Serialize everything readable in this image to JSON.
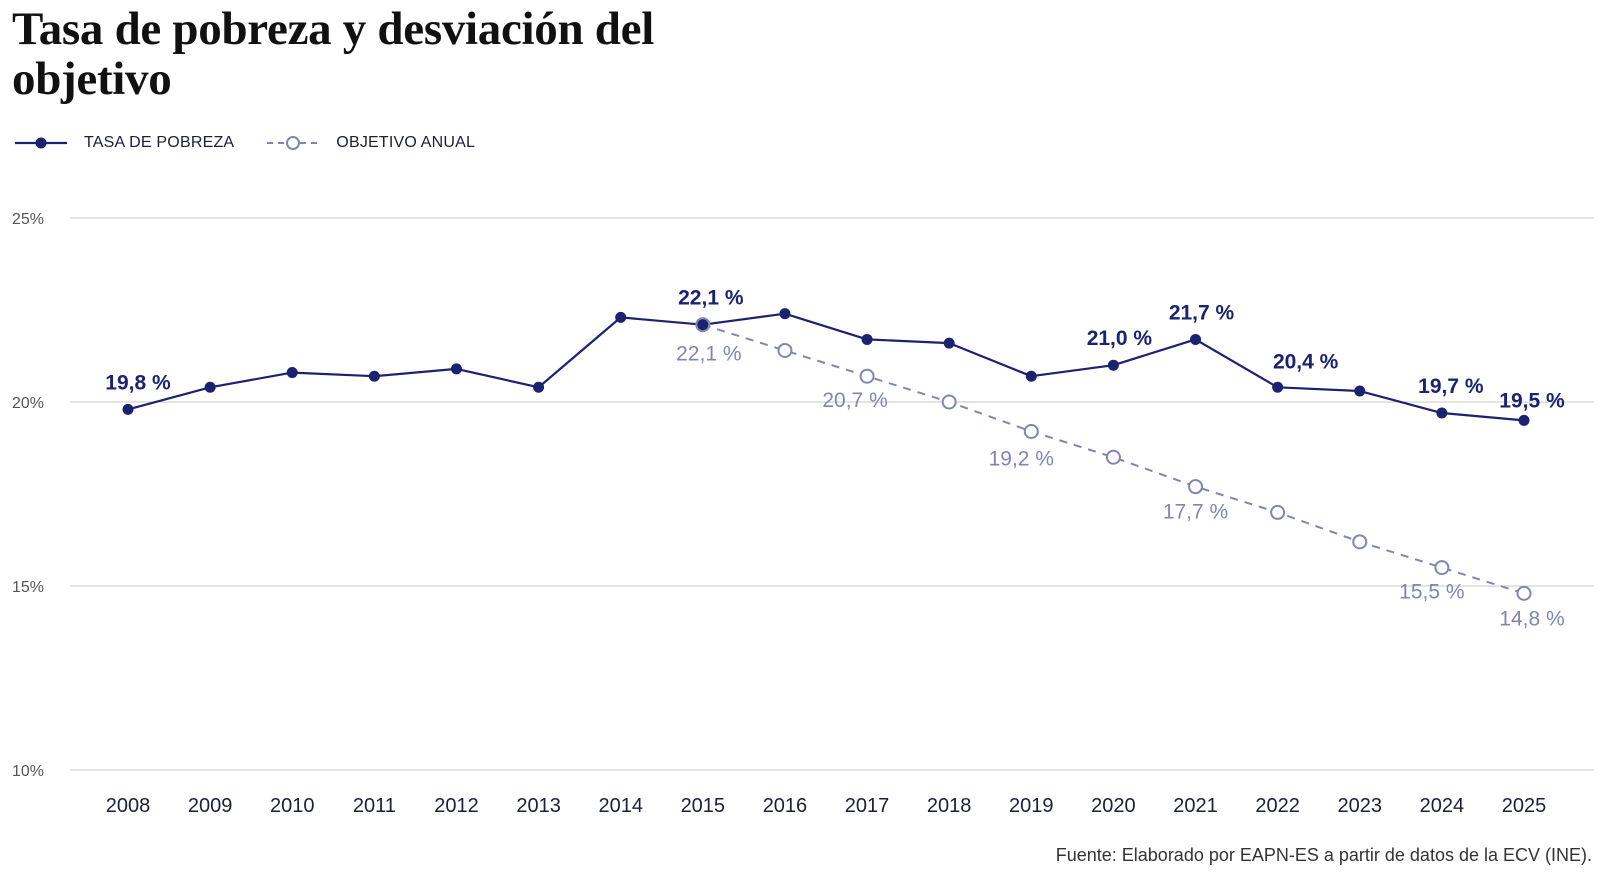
{
  "chart_data": {
    "type": "line",
    "title": "Tasa de pobreza y desviación del objetivo",
    "categories": [
      "2008",
      "2009",
      "2010",
      "2011",
      "2012",
      "2013",
      "2014",
      "2015",
      "2016",
      "2017",
      "2018",
      "2019",
      "2020",
      "2021",
      "2022",
      "2023",
      "2024",
      "2025"
    ],
    "ylim": [
      10,
      25
    ],
    "yticks": [
      {
        "value": 25,
        "label": "25%"
      },
      {
        "value": 20,
        "label": "20%"
      },
      {
        "value": 15,
        "label": "15%"
      },
      {
        "value": 10,
        "label": "10%"
      }
    ],
    "grid": true,
    "legend_position": "top-left",
    "series": [
      {
        "name": "TASA DE POBREZA",
        "style": "solid-filled-markers",
        "color": "#1b2270",
        "values": [
          19.8,
          20.4,
          20.8,
          20.7,
          20.9,
          20.4,
          22.3,
          22.1,
          22.4,
          21.7,
          21.6,
          20.7,
          21.0,
          21.7,
          20.4,
          20.3,
          19.7,
          19.5
        ],
        "data_labels": [
          {
            "index": 0,
            "text": "19,8 %"
          },
          {
            "index": 7,
            "text": "22,1 %"
          },
          {
            "index": 12,
            "text": "21,0 %"
          },
          {
            "index": 13,
            "text": "21,7 %"
          },
          {
            "index": 14,
            "text": "20,4 %"
          },
          {
            "index": 16,
            "text": "19,7 %"
          },
          {
            "index": 17,
            "text": "19,5 %"
          }
        ]
      },
      {
        "name": "OBJETIVO ANUAL",
        "style": "dashed-open-markers",
        "color": "#7f86b2",
        "values": [
          null,
          null,
          null,
          null,
          null,
          null,
          null,
          22.1,
          21.4,
          20.7,
          20.0,
          19.2,
          18.5,
          17.7,
          17.0,
          16.2,
          15.5,
          14.8
        ],
        "data_labels": [
          {
            "index": 7,
            "text": "22,1 %"
          },
          {
            "index": 9,
            "text": "20,7 %"
          },
          {
            "index": 11,
            "text": "19,2 %"
          },
          {
            "index": 13,
            "text": "17,7 %"
          },
          {
            "index": 16,
            "text": "15,5 %"
          },
          {
            "index": 17,
            "text": "14,8 %"
          }
        ]
      }
    ]
  },
  "source": "Fuente: Elaborado por EAPN-ES a partir de datos de la ECV (INE)."
}
